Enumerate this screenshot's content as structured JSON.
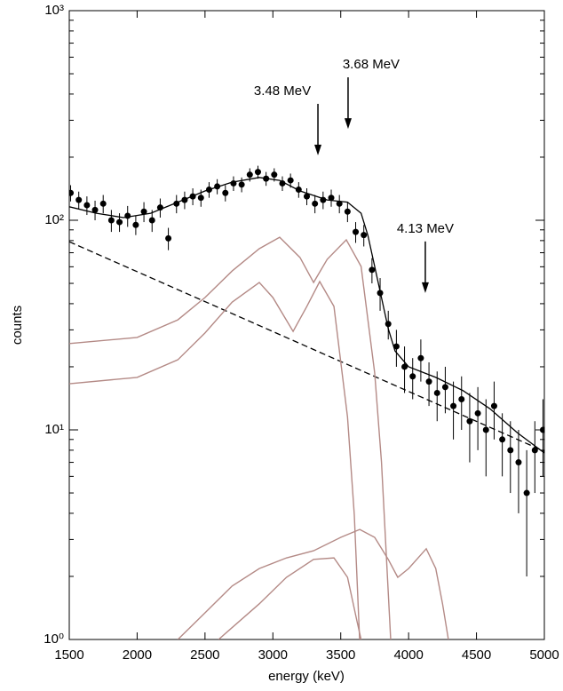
{
  "chart_data": {
    "type": "scatter",
    "x_label": "energy (keV)",
    "y_label": "counts",
    "xlim": [
      1500,
      5000
    ],
    "xticks": [
      1500,
      2000,
      2500,
      3000,
      3500,
      4000,
      4500,
      5000
    ],
    "ylim": [
      1,
      1000
    ],
    "log_y": true,
    "yticks": [
      {
        "value": 1,
        "label": "10⁰"
      },
      {
        "value": 10,
        "label": "10¹"
      },
      {
        "value": 100,
        "label": "10²"
      },
      {
        "value": 1000,
        "label": "10³"
      }
    ],
    "points": {
      "color": "#000000",
      "x": [
        1510,
        1570,
        1630,
        1690,
        1750,
        1810,
        1870,
        1930,
        1990,
        2050,
        2110,
        2170,
        2230,
        2290,
        2350,
        2410,
        2470,
        2530,
        2590,
        2650,
        2710,
        2770,
        2830,
        2890,
        2950,
        3010,
        3070,
        3130,
        3190,
        3250,
        3310,
        3370,
        3430,
        3490,
        3550,
        3610,
        3670,
        3730,
        3790,
        3850,
        3910,
        3970,
        4030,
        4090,
        4150,
        4210,
        4270,
        4330,
        4390,
        4450,
        4510,
        4570,
        4630,
        4690,
        4750,
        4810,
        4870,
        4930,
        4990
      ],
      "values": [
        135,
        125,
        118,
        112,
        120,
        100,
        98,
        105,
        95,
        110,
        100,
        115,
        82,
        120,
        125,
        130,
        128,
        140,
        145,
        135,
        150,
        148,
        165,
        170,
        158,
        165,
        150,
        155,
        140,
        130,
        120,
        125,
        128,
        120,
        110,
        88,
        85,
        58,
        45,
        32,
        25,
        20,
        18,
        22,
        17,
        15,
        16,
        13,
        14,
        11,
        12,
        10,
        13,
        9,
        8,
        7,
        5,
        8,
        10
      ],
      "errors": [
        12,
        12,
        12,
        12,
        12,
        12,
        10,
        12,
        10,
        12,
        12,
        12,
        10,
        12,
        12,
        12,
        12,
        12,
        12,
        12,
        12,
        12,
        12,
        12,
        12,
        12,
        12,
        12,
        12,
        12,
        12,
        12,
        12,
        12,
        12,
        10,
        10,
        8,
        8,
        5,
        5,
        5,
        4,
        5,
        4,
        4,
        4,
        4,
        4,
        4,
        4,
        4,
        4,
        3,
        3,
        3,
        3,
        3,
        4
      ]
    },
    "curves": [
      {
        "color": "#000000",
        "style": "solid",
        "x": [
          1500,
          1700,
          1900,
          2100,
          2300,
          2500,
          2700,
          2900,
          3050,
          3200,
          3400,
          3550,
          3650,
          3700,
          3750,
          3800,
          3850,
          3900,
          4000,
          4200,
          4400,
          4600,
          4800,
          5000
        ],
        "values": [
          116,
          108,
          103,
          108,
          122,
          138,
          152,
          160,
          155,
          138,
          125,
          122,
          108,
          84.7,
          60.2,
          42.8,
          30.4,
          23.8,
          20.0,
          17.8,
          15.4,
          12.6,
          9.7,
          7.76
        ]
      },
      {
        "color": "#000000",
        "style": "dashed",
        "x": [
          1500,
          5000
        ],
        "values": [
          79,
          7.9
        ]
      },
      {
        "color": "#b48a86",
        "style": "solid",
        "x": [
          1500,
          2000,
          2300,
          2500,
          2700,
          2900,
          3050,
          3200,
          3300,
          3400,
          3541,
          3650,
          3750,
          3800,
          3868
        ],
        "values": [
          25.8,
          27.6,
          33.5,
          42.8,
          57.3,
          73.2,
          83.0,
          66.4,
          50.5,
          65.1,
          80.7,
          60.2,
          18.7,
          7.04,
          1
        ]
      },
      {
        "color": "#b48a86",
        "style": "solid",
        "x": [
          1500,
          2000,
          2300,
          2500,
          2700,
          2900,
          3000,
          3149,
          3250,
          3345,
          3450,
          3550,
          3600,
          3639
        ],
        "values": [
          16.6,
          17.8,
          21.6,
          29.0,
          40.7,
          50.5,
          42.8,
          29.5,
          38.8,
          51.0,
          38.8,
          11.5,
          3.92,
          1
        ]
      },
      {
        "color": "#b48a86",
        "style": "solid",
        "x": [
          2300,
          2500,
          2700,
          2900,
          3100,
          3300,
          3500,
          3640,
          3750,
          3850,
          3920,
          4000,
          4130,
          4200,
          4250,
          4293
        ],
        "values": [
          1,
          1.34,
          1.8,
          2.18,
          2.45,
          2.65,
          3.07,
          3.35,
          3.07,
          2.41,
          1.98,
          2.18,
          2.71,
          2.18,
          1.48,
          1
        ]
      },
      {
        "color": "#b48a86",
        "style": "solid",
        "x": [
          2600,
          2900,
          3100,
          3300,
          3450,
          3550,
          3620,
          3650
        ],
        "values": [
          1,
          1.48,
          1.98,
          2.41,
          2.45,
          1.98,
          1.22,
          1
        ]
      }
    ],
    "annotations": [
      {
        "text": "3.48 MeV",
        "x": 3332,
        "y": 204
      },
      {
        "text": "3.68 MeV",
        "x": 3554,
        "y": 273
      },
      {
        "text": "4.13 MeV",
        "x": 4123,
        "y": 45
      }
    ]
  }
}
